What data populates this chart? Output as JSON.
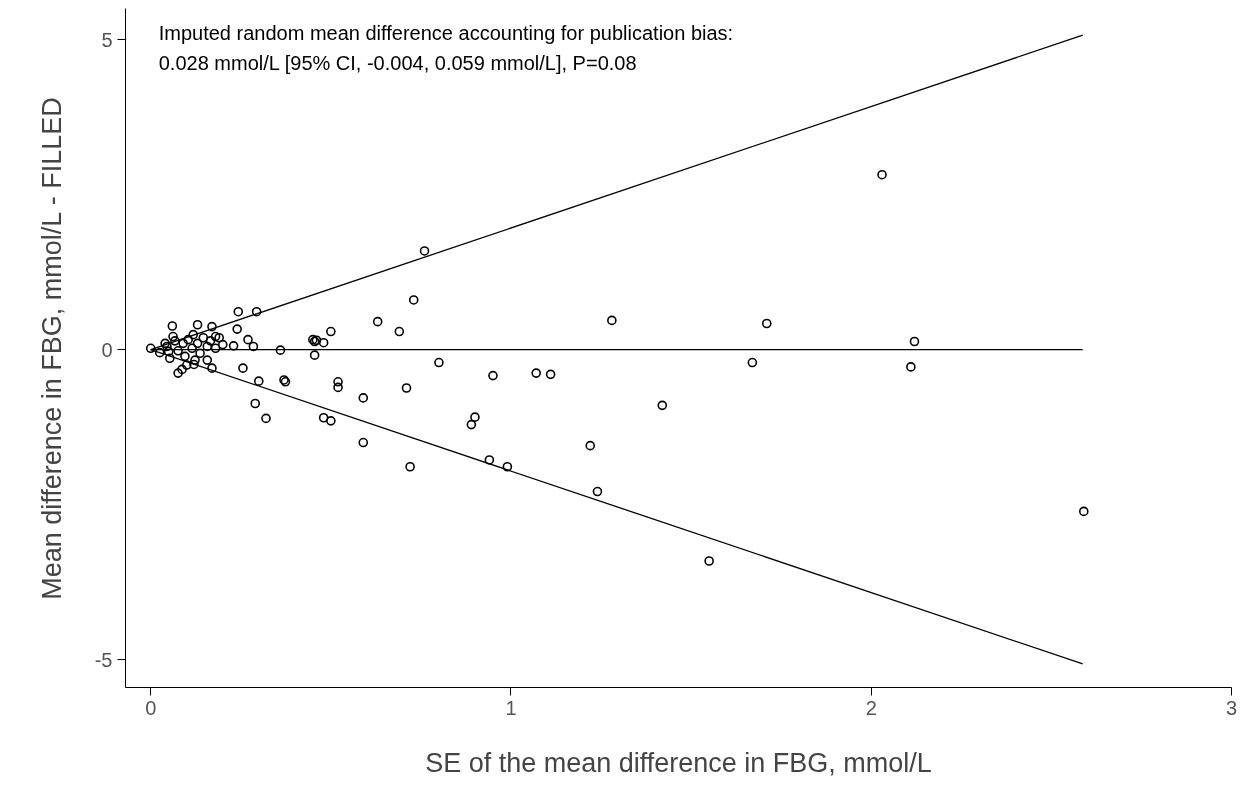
{
  "chart_data": {
    "type": "scatter",
    "xlabel": "SE of the mean difference in FBG, mmol/L",
    "ylabel": "Mean difference in FBG, mmol/L - FILLED",
    "annotations": [
      "Imputed random mean difference accounting for publication bias:",
      "0.028 mmol/L [95% CI, -0.004, 0.059 mmol/L], P=0.08"
    ],
    "xlim": [
      -0.07,
      3.0
    ],
    "ylim": [
      -5.45,
      5.5
    ],
    "xticks": [
      0,
      1,
      2,
      3
    ],
    "yticks": [
      -5,
      0,
      5
    ],
    "grid": false,
    "series": [
      {
        "type": "line",
        "marker": "none",
        "color": "#000000",
        "x": [
          0,
          2.587
        ],
        "values": [
          0,
          5.07
        ]
      },
      {
        "type": "line",
        "marker": "none",
        "color": "#000000",
        "x": [
          0,
          2.587
        ],
        "values": [
          0,
          0
        ]
      },
      {
        "type": "line",
        "marker": "none",
        "color": "#000000",
        "x": [
          0,
          2.587
        ],
        "values": [
          0,
          -5.07
        ]
      },
      {
        "marker": "circle",
        "color": "#000000",
        "x": [
          0,
          0.025,
          0.06,
          0.13,
          0.17,
          0.076,
          0.087,
          0.1,
          0.12,
          0.157,
          0.17,
          0.23,
          0.04,
          0.05,
          0.053,
          0.067,
          0.076,
          0.09,
          0.095,
          0.104,
          0.115,
          0.13,
          0.137,
          0.146,
          0.157,
          0.166,
          0.18,
          0.19,
          0.2,
          0.062,
          0.118,
          0.18,
          0.123,
          0.045,
          0.243,
          0.294,
          0.24,
          0.27,
          0.285,
          0.256,
          0.3,
          0.29,
          0.32,
          0.36,
          0.37,
          0.374,
          0.45,
          0.46,
          0.455,
          0.455,
          0.48,
          0.5,
          0.48,
          0.5,
          0.52,
          0.52,
          0.59,
          0.59,
          0.63,
          0.69,
          0.71,
          0.73,
          0.72,
          0.76,
          0.8,
          0.89,
          0.9,
          0.94,
          0.95,
          0.99,
          1.07,
          1.11,
          1.22,
          1.24,
          1.28,
          1.42,
          1.55,
          1.67,
          1.71,
          2.03,
          2.11,
          2.12,
          2.59
        ],
        "values": [
          0.02,
          -0.05,
          0.38,
          0.4,
          0.37,
          -0.38,
          -0.32,
          -0.25,
          -0.24,
          -0.17,
          -0.3,
          0.06,
          0.1,
          -0.03,
          -0.14,
          0.14,
          -0.02,
          0.1,
          -0.11,
          0.16,
          0.02,
          0.1,
          -0.06,
          0.19,
          0.05,
          0.14,
          0.02,
          0.19,
          0.08,
          0.21,
          0.24,
          0.21,
          -0.17,
          0.05,
          0.61,
          0.61,
          0.33,
          0.16,
          0.05,
          -0.3,
          -0.51,
          -0.87,
          -1.11,
          -0.01,
          -0.49,
          -0.52,
          0.16,
          0.15,
          0.13,
          -0.09,
          0.11,
          0.29,
          -1.1,
          -1.15,
          -0.52,
          -0.61,
          -0.78,
          -1.5,
          0.45,
          0.29,
          -0.62,
          0.8,
          -1.89,
          1.59,
          -0.21,
          -1.21,
          -1.09,
          -1.78,
          -0.42,
          -1.89,
          -0.38,
          -0.4,
          -1.55,
          -2.29,
          0.47,
          -0.9,
          -3.41,
          -0.21,
          0.42,
          2.82,
          -0.28,
          0.13,
          -2.61
        ]
      }
    ]
  }
}
